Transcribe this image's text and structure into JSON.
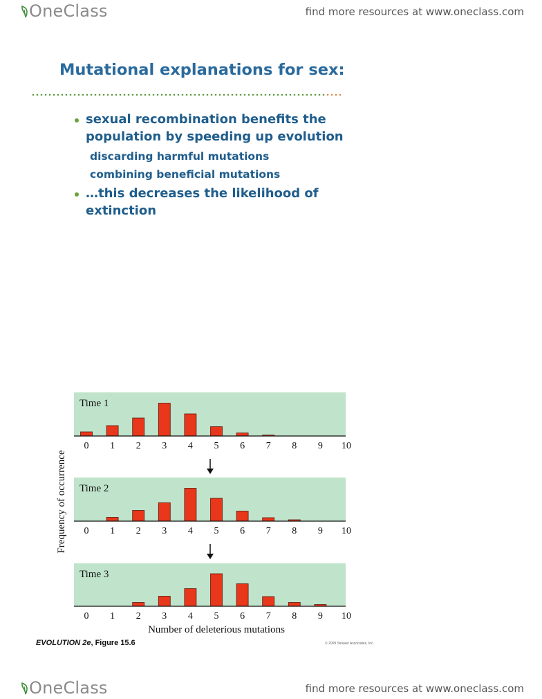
{
  "header": {
    "logo_text": "OneClass",
    "find_more": "find more resources at www.oneclass.com"
  },
  "slide": {
    "title": "Mutational explanations for sex:",
    "bullets": [
      "sexual recombination benefits the population by speeding up evolution",
      "…this decreases the likelihood of extinction"
    ],
    "sub_points": [
      "discarding harmful mutations",
      "combining beneficial mutations"
    ]
  },
  "chart_data": {
    "type": "bar",
    "title": "",
    "xlabel": "Number of deleterious mutations",
    "ylabel": "Frequency of occurrence",
    "categories": [
      "0",
      "1",
      "2",
      "3",
      "4",
      "5",
      "6",
      "7",
      "8",
      "9",
      "10"
    ],
    "ylim": [
      0,
      1
    ],
    "bar_color": "#e8371a",
    "panel_color": "#c0e3cb",
    "panels": [
      {
        "name": "Time 1",
        "values": [
          0.12,
          0.3,
          0.52,
          0.95,
          0.64,
          0.27,
          0.09,
          0.03,
          0,
          0,
          0
        ]
      },
      {
        "name": "Time 2",
        "values": [
          0,
          0.11,
          0.31,
          0.53,
          0.95,
          0.66,
          0.29,
          0.1,
          0.04,
          0,
          0
        ]
      },
      {
        "name": "Time 3",
        "values": [
          0,
          0,
          0.11,
          0.29,
          0.51,
          0.94,
          0.65,
          0.28,
          0.11,
          0.05,
          0
        ]
      }
    ]
  },
  "figure": {
    "caption_italic": "EVOLUTION 2e",
    "caption_rest": ", Figure 15.6",
    "copyright": "© 2009 Sinauer Associates, Inc."
  },
  "footer": {
    "logo_text": "OneClass",
    "find_more": "find more resources at www.oneclass.com"
  }
}
